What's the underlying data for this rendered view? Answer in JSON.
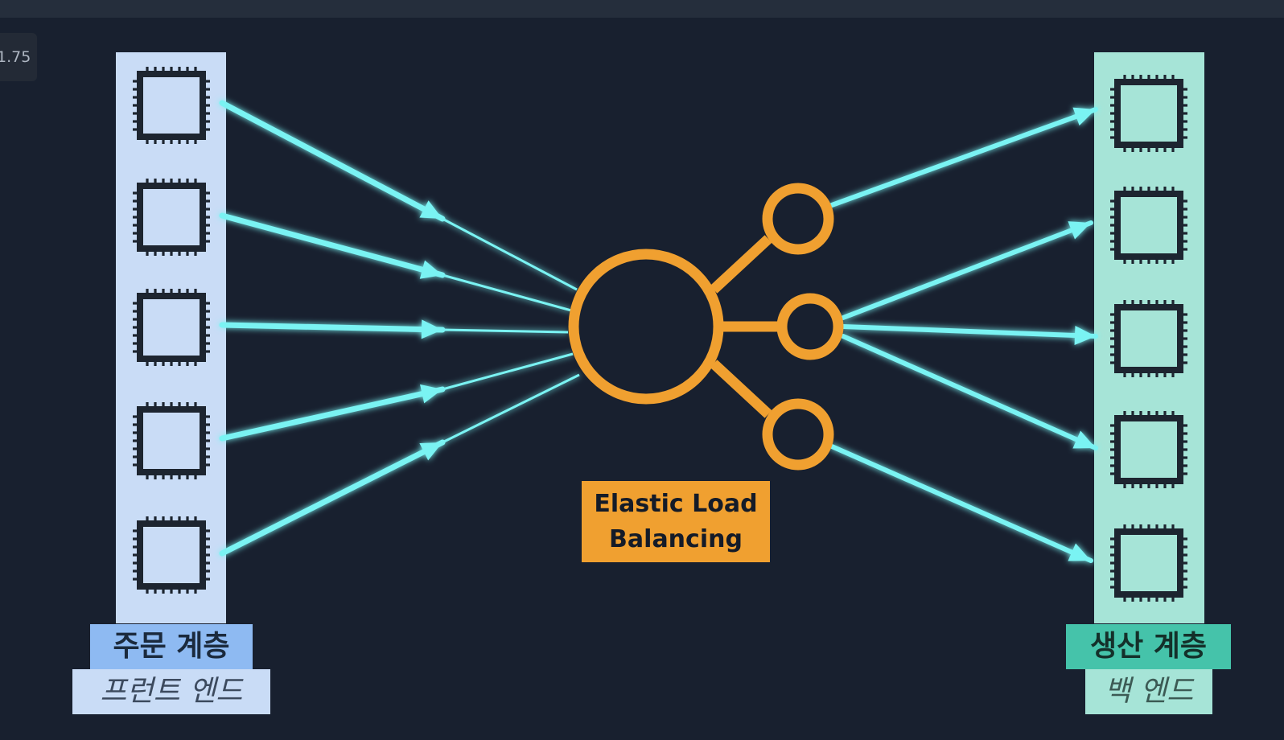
{
  "player": {
    "speed_badge": "1.75"
  },
  "diagram": {
    "center": {
      "label_line1": "Elastic Load",
      "label_line2": "Balancing",
      "icon": "load-balancer-icon",
      "color": "#f0a030"
    },
    "left_tier": {
      "title": "주문 계층",
      "subtitle": "프런트 엔드",
      "instance_count": 5,
      "icon": "chip-icon",
      "panel_color": "#c9dcf6",
      "title_bg": "#8ebaf2",
      "subtitle_bg": "#c9dcf6"
    },
    "right_tier": {
      "title": "생산 계층",
      "subtitle": "백 엔드",
      "instance_count": 5,
      "icon": "chip-icon",
      "panel_color": "#a6e4d7",
      "title_bg": "#45c3aa",
      "subtitle_bg": "#a6e4d7"
    },
    "arrow_color": "#7af3f3"
  }
}
